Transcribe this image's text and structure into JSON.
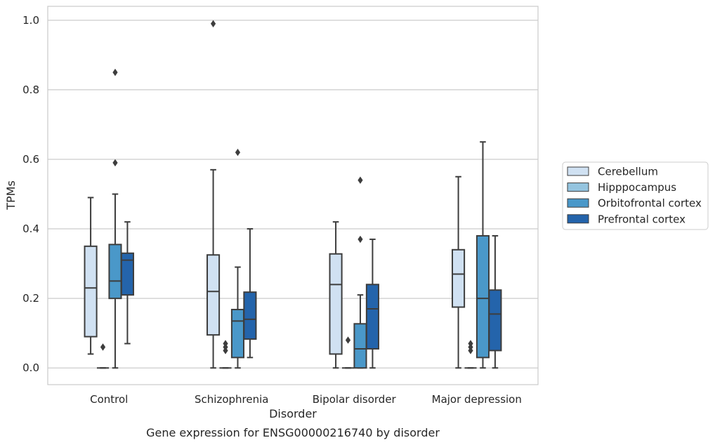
{
  "chart_data": {
    "type": "box",
    "caption": "Gene expression for ENSG00000216740 by disorder",
    "xlabel": "Disorder",
    "ylabel": "TPMs",
    "ylim": [
      -0.048,
      1.04
    ],
    "yticks": [
      0.0,
      0.2,
      0.4,
      0.6,
      0.8,
      1.0
    ],
    "ytick_labels": [
      "0.0",
      "0.2",
      "0.4",
      "0.6",
      "0.8",
      "1.0"
    ],
    "grid": "horizontal",
    "legend_position": "right",
    "categories": [
      "Control",
      "Schizophrenia",
      "Bipolar disorder",
      "Major depression"
    ],
    "series": [
      {
        "name": "Cerebellum",
        "color": "#d0e1f2",
        "boxes": [
          {
            "q1": 0.09,
            "median": 0.23,
            "q3": 0.35,
            "whisker_low": 0.04,
            "whisker_high": 0.49,
            "outliers": []
          },
          {
            "q1": 0.095,
            "median": 0.22,
            "q3": 0.325,
            "whisker_low": 0.0,
            "whisker_high": 0.57,
            "outliers": [
              0.99
            ]
          },
          {
            "q1": 0.04,
            "median": 0.24,
            "q3": 0.328,
            "whisker_low": 0.0,
            "whisker_high": 0.42,
            "outliers": []
          },
          {
            "q1": 0.175,
            "median": 0.27,
            "q3": 0.34,
            "whisker_low": 0.0,
            "whisker_high": 0.55,
            "outliers": []
          }
        ]
      },
      {
        "name": "Hipppocampus",
        "color": "#94c4df",
        "boxes": [
          {
            "q1": 0.0,
            "median": 0.0,
            "q3": 0.0,
            "whisker_low": 0.0,
            "whisker_high": 0.0,
            "outliers": [
              0.06
            ]
          },
          {
            "q1": 0.0,
            "median": 0.0,
            "q3": 0.0,
            "whisker_low": 0.0,
            "whisker_high": 0.0,
            "outliers": [
              0.05,
              0.06,
              0.07
            ]
          },
          {
            "q1": 0.0,
            "median": 0.0,
            "q3": 0.0,
            "whisker_low": 0.0,
            "whisker_high": 0.0,
            "outliers": [
              0.08
            ]
          },
          {
            "q1": 0.0,
            "median": 0.0,
            "q3": 0.0,
            "whisker_low": 0.0,
            "whisker_high": 0.0,
            "outliers": [
              0.05,
              0.06,
              0.07
            ]
          }
        ]
      },
      {
        "name": "Orbitofrontal cortex",
        "color": "#4a98c9",
        "boxes": [
          {
            "q1": 0.2,
            "median": 0.25,
            "q3": 0.355,
            "whisker_low": 0.0,
            "whisker_high": 0.5,
            "outliers": [
              0.59,
              0.85
            ]
          },
          {
            "q1": 0.03,
            "median": 0.135,
            "q3": 0.168,
            "whisker_low": 0.0,
            "whisker_high": 0.29,
            "outliers": [
              0.62
            ]
          },
          {
            "q1": 0.0,
            "median": 0.055,
            "q3": 0.127,
            "whisker_low": 0.0,
            "whisker_high": 0.21,
            "outliers": [
              0.37,
              0.54
            ]
          },
          {
            "q1": 0.03,
            "median": 0.2,
            "q3": 0.38,
            "whisker_low": 0.0,
            "whisker_high": 0.65,
            "outliers": []
          }
        ]
      },
      {
        "name": "Prefrontal cortex",
        "color": "#2464ab",
        "boxes": [
          {
            "q1": 0.21,
            "median": 0.31,
            "q3": 0.33,
            "whisker_low": 0.07,
            "whisker_high": 0.42,
            "outliers": []
          },
          {
            "q1": 0.083,
            "median": 0.14,
            "q3": 0.218,
            "whisker_low": 0.03,
            "whisker_high": 0.4,
            "outliers": []
          },
          {
            "q1": 0.055,
            "median": 0.17,
            "q3": 0.24,
            "whisker_low": 0.0,
            "whisker_high": 0.37,
            "outliers": []
          },
          {
            "q1": 0.05,
            "median": 0.155,
            "q3": 0.224,
            "whisker_low": 0.0,
            "whisker_high": 0.38,
            "outliers": []
          }
        ]
      }
    ]
  }
}
